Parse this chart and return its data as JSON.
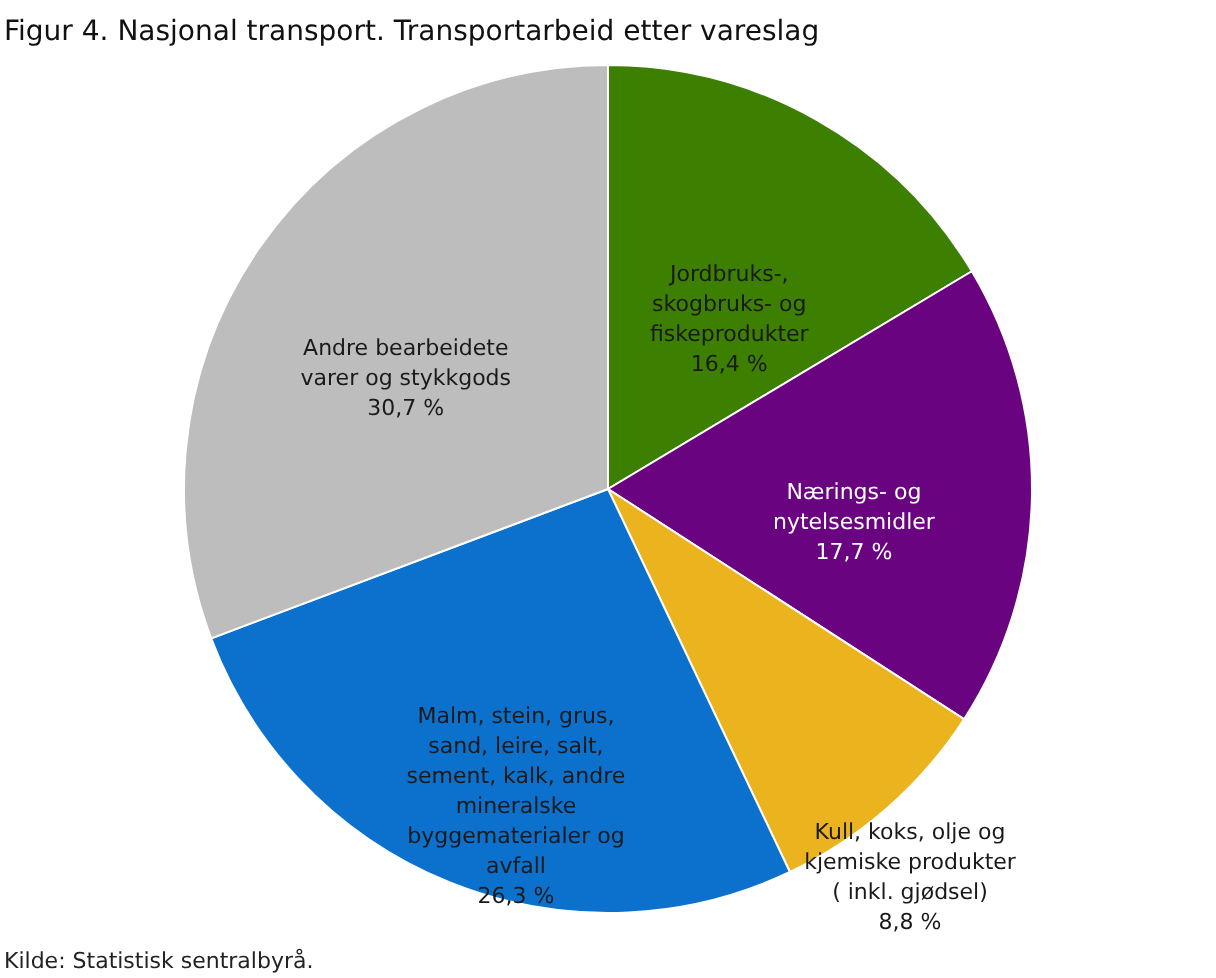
{
  "chart_data": {
    "type": "pie",
    "title": "Figur 4. Nasjonal transport. Transportarbeid etter vareslag",
    "categories": [
      "Jordbruks-, skogbruks- og fiskeprodukter",
      "Nærings- og nytelsesmidler",
      "Kull, koks, olje og kjemiske produkter ( inkl. gjødsel)",
      "Malm, stein, grus, sand, leire, salt, sement, kalk, andre mineralske byggematerialer og avfall",
      "Andre bearbeidete varer og stykkgods"
    ],
    "values": [
      16.4,
      17.7,
      8.8,
      26.3,
      30.7
    ],
    "value_labels": [
      "16,4 %",
      "17,7 %",
      "8,8 %",
      "26,3 %",
      "30,7 %"
    ],
    "colors": [
      "#3d7f00",
      "#69037f",
      "#ebb41f",
      "#0b71cc",
      "#bdbdbd"
    ],
    "annotations": [
      "Kilde: Statistisk sentralbyrå."
    ]
  }
}
